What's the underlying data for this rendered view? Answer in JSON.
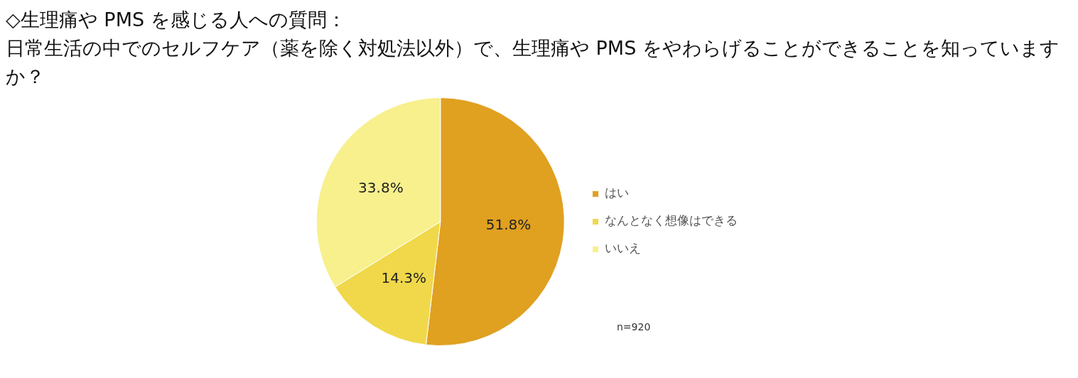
{
  "chart_data": {
    "type": "pie",
    "title": "◇生理痛や PMS を感じる人への質問：",
    "subtitle": "日常生活の中でのセルフケア（薬を除く対処法以外）で、生理痛や PMS をやわらげることができることを知っていますか？",
    "categories": [
      "はい",
      "なんとなく想像はできる",
      "いいえ"
    ],
    "values": [
      51.8,
      14.3,
      33.8
    ],
    "value_labels": [
      "51.8%",
      "14.3%",
      "33.8%"
    ],
    "colors": [
      "#e0a020",
      "#f0d84a",
      "#f7f08c"
    ],
    "legend": "right",
    "annotations": [
      "n=920"
    ]
  }
}
